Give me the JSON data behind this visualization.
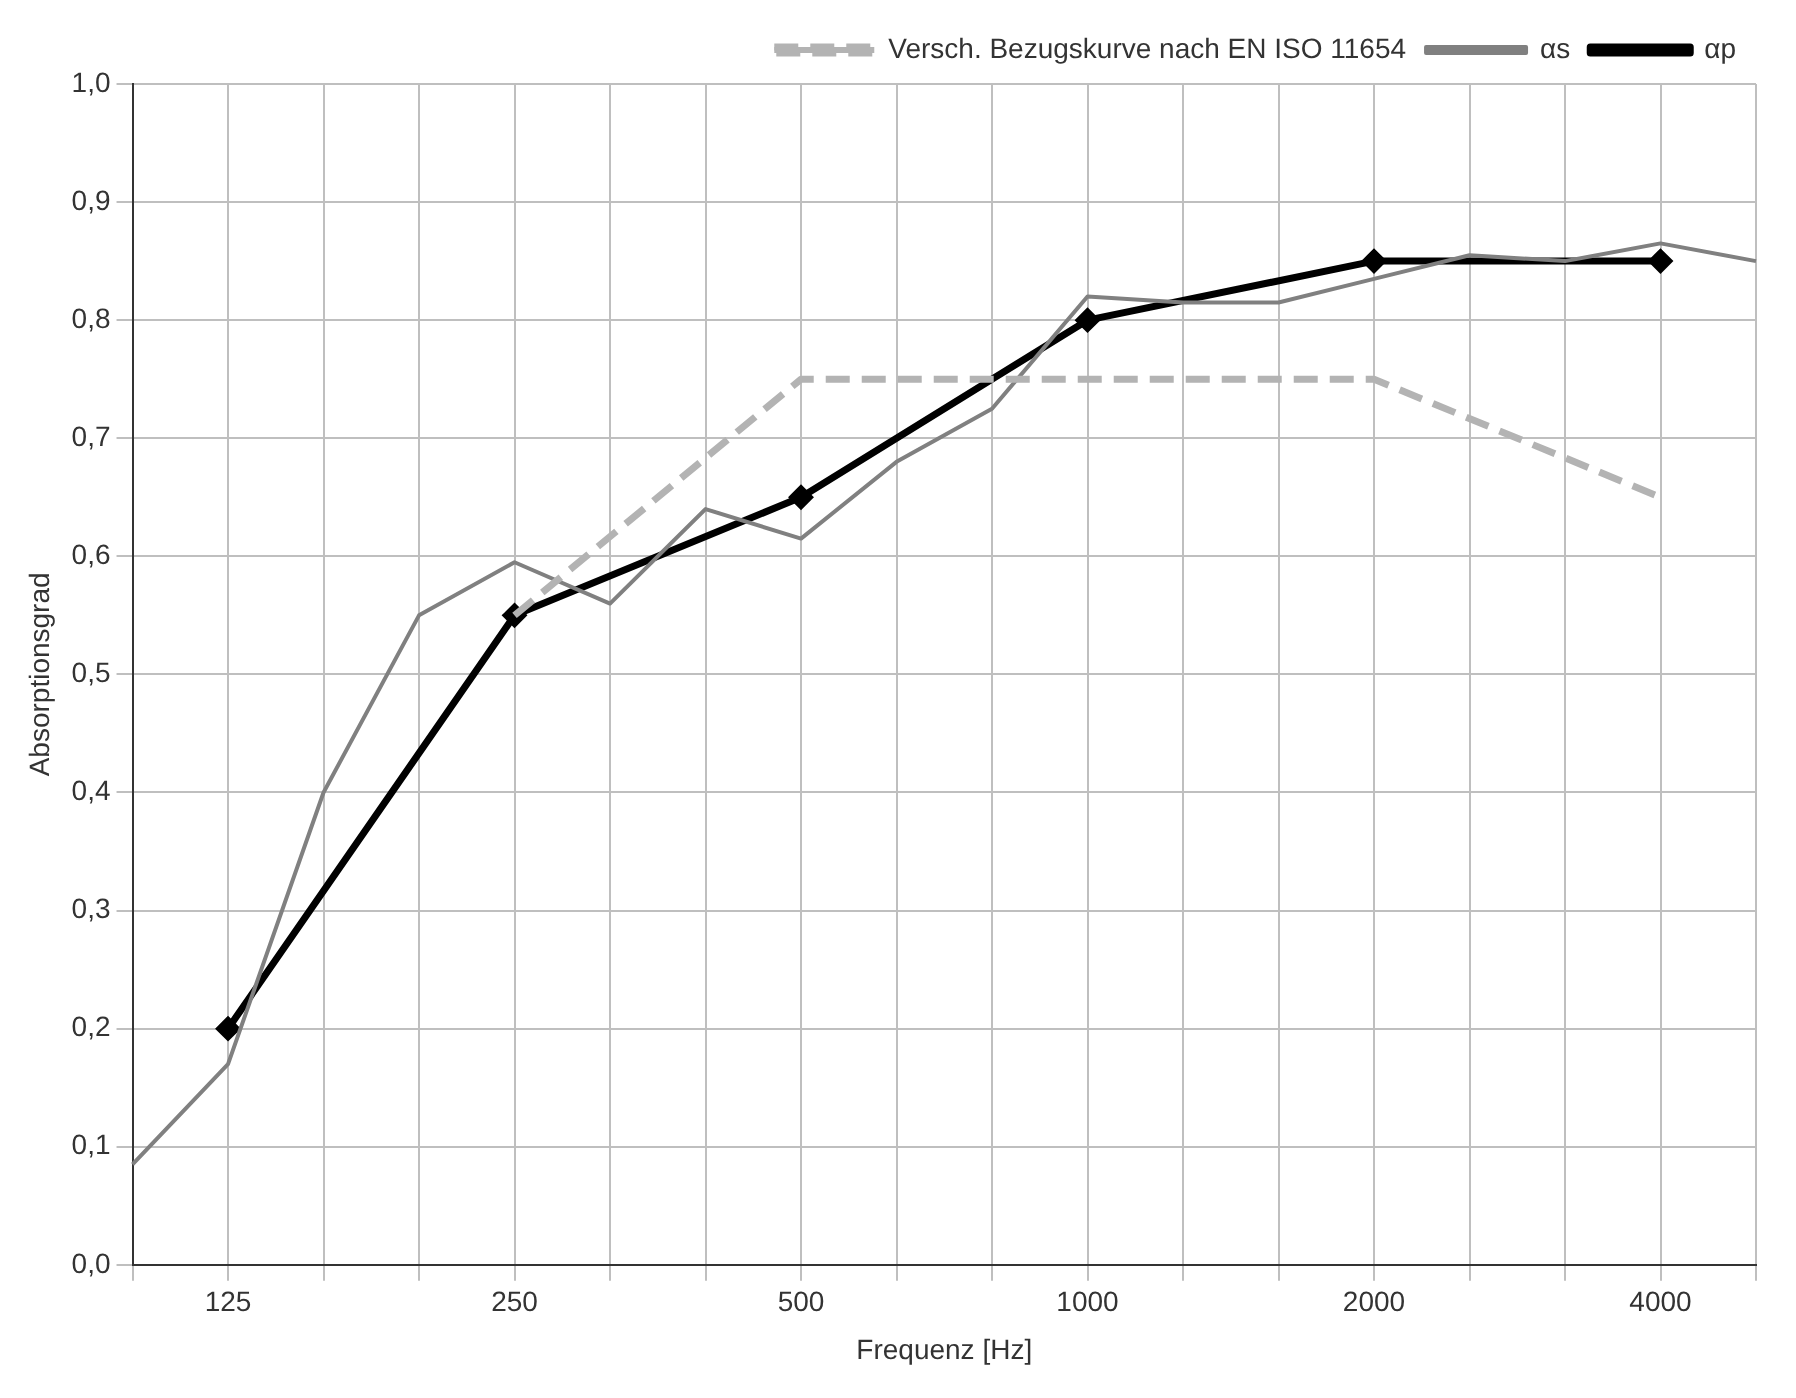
{
  "chart_data": {
    "type": "line",
    "xlabel": "Frequenz [Hz]",
    "ylabel": "Absorptionsgrad",
    "categories": [
      null,
      "125",
      null,
      null,
      "250",
      null,
      null,
      "500",
      null,
      null,
      "1000",
      null,
      null,
      "2000",
      null,
      null,
      "4000",
      null
    ],
    "series": [
      {
        "name": "Versch. Bezugskurve nach EN ISO 11654",
        "color": "#b3b3b3",
        "line_style": "dashed",
        "marker": "none",
        "values": [
          null,
          null,
          null,
          null,
          0.55,
          null,
          null,
          0.75,
          null,
          null,
          0.75,
          null,
          null,
          0.75,
          null,
          null,
          0.65,
          null
        ]
      },
      {
        "name": "αs",
        "color": "#808080",
        "line_style": "solid",
        "marker": "none",
        "values": [
          0.085,
          0.17,
          0.4,
          0.55,
          0.595,
          0.56,
          0.64,
          0.615,
          0.68,
          0.725,
          0.82,
          0.815,
          0.815,
          0.835,
          0.855,
          0.85,
          0.865,
          0.85
        ]
      },
      {
        "name": "αp",
        "color": "#000000",
        "line_style": "solid",
        "marker": "diamond",
        "values": [
          null,
          0.2,
          null,
          null,
          0.55,
          null,
          null,
          0.65,
          null,
          null,
          0.8,
          null,
          null,
          0.85,
          null,
          null,
          0.85,
          null
        ]
      }
    ],
    "ylim": [
      0,
      1
    ],
    "yticks": [
      {
        "value": 0,
        "label": "0,0"
      },
      {
        "value": 0.1,
        "label": "0,1"
      },
      {
        "value": 0.2,
        "label": "0,2"
      },
      {
        "value": 0.3,
        "label": "0,3"
      },
      {
        "value": 0.4,
        "label": "0,4"
      },
      {
        "value": 0.5,
        "label": "0,5"
      },
      {
        "value": 0.6,
        "label": "0,6"
      },
      {
        "value": 0.7,
        "label": "0,7"
      },
      {
        "value": 0.8,
        "label": "0,8"
      },
      {
        "value": 0.9,
        "label": "0,9"
      },
      {
        "value": 1,
        "label": "1,0"
      }
    ],
    "grid": true,
    "legend": "top"
  }
}
